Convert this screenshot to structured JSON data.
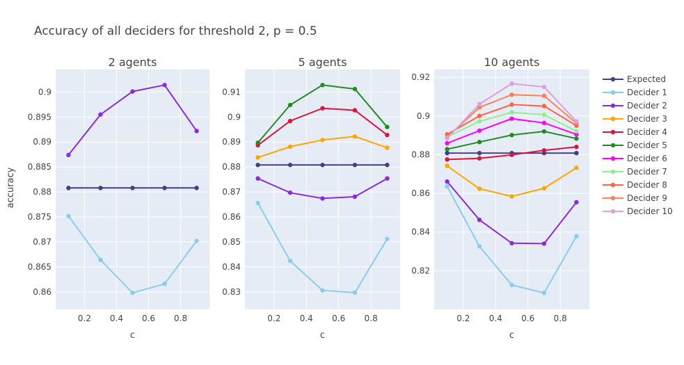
{
  "title": "Accuracy of all deciders for threshold 2, p = 0.5",
  "y_axis_label": "accuracy",
  "chart_data": {
    "type": "line",
    "title": "Accuracy of all deciders for threshold 2, p = 0.5",
    "ylabel": "accuracy",
    "legend": {
      "placement": "right",
      "entries": [
        {
          "name": "Expected",
          "color": "#3f3f8a"
        },
        {
          "name": "Decider 1",
          "color": "#87ceeb"
        },
        {
          "name": "Decider 2",
          "color": "#8a2be2"
        },
        {
          "name": "Decider 3",
          "color": "#ffa500"
        },
        {
          "name": "Decider 4",
          "color": "#dc143c"
        },
        {
          "name": "Decider 5",
          "color": "#228b22"
        },
        {
          "name": "Decider 6",
          "color": "#ff00ff"
        },
        {
          "name": "Decider 7",
          "color": "#90ee90"
        },
        {
          "name": "Decider 8",
          "color": "#ff6347"
        },
        {
          "name": "Decider 9",
          "color": "#ff7f50"
        },
        {
          "name": "Decider 10",
          "color": "#dda0dd"
        }
      ]
    },
    "subplots": [
      {
        "title": "2 agents",
        "xlabel": "c",
        "x": [
          0.1,
          0.3,
          0.5,
          0.7,
          0.9
        ],
        "xlim": [
          0.02,
          0.98
        ],
        "ylim": [
          0.8565,
          0.9045
        ],
        "xticks": [
          "0.2",
          "0.4",
          "0.6",
          "0.8"
        ],
        "yticks": [
          "0.86",
          "0.865",
          "0.87",
          "0.875",
          "0.88",
          "0.885",
          "0.89",
          "0.895",
          "0.9"
        ],
        "series": [
          {
            "name": "Expected",
            "values": [
              0.8808,
              0.8808,
              0.8808,
              0.8808,
              0.8808
            ]
          },
          {
            "name": "Decider 1",
            "values": [
              0.8752,
              0.8664,
              0.8598,
              0.8616,
              0.8702
            ]
          },
          {
            "name": "Decider 2",
            "values": [
              0.8874,
              0.8955,
              0.9001,
              0.9014,
              0.8922
            ]
          }
        ]
      },
      {
        "title": "5 agents",
        "xlabel": "c",
        "x": [
          0.1,
          0.3,
          0.5,
          0.7,
          0.9
        ],
        "xlim": [
          0.02,
          0.98
        ],
        "ylim": [
          0.823,
          0.919
        ],
        "xticks": [
          "0.2",
          "0.4",
          "0.6",
          "0.8"
        ],
        "yticks": [
          "0.83",
          "0.84",
          "0.85",
          "0.86",
          "0.87",
          "0.88",
          "0.89",
          "0.9",
          "0.91"
        ],
        "series": [
          {
            "name": "Expected",
            "values": [
              0.8808,
              0.8808,
              0.8808,
              0.8808,
              0.8808
            ]
          },
          {
            "name": "Decider 1",
            "values": [
              0.8656,
              0.8424,
              0.8306,
              0.8297,
              0.8512
            ]
          },
          {
            "name": "Decider 2",
            "values": [
              0.8754,
              0.8697,
              0.8674,
              0.8681,
              0.8754
            ]
          },
          {
            "name": "Decider 3",
            "values": [
              0.8838,
              0.8881,
              0.8908,
              0.8922,
              0.8877
            ]
          },
          {
            "name": "Decider 4",
            "values": [
              0.8887,
              0.8984,
              0.9035,
              0.9027,
              0.8928
            ]
          },
          {
            "name": "Decider 5",
            "values": [
              0.8897,
              0.9048,
              0.9128,
              0.9112,
              0.896
            ]
          }
        ]
      },
      {
        "title": "10 agents",
        "xlabel": "c",
        "x": [
          0.1,
          0.3,
          0.5,
          0.7,
          0.9
        ],
        "xlim": [
          0.02,
          0.98
        ],
        "ylim": [
          0.8,
          0.924
        ],
        "xticks": [
          "0.2",
          "0.4",
          "0.6",
          "0.8"
        ],
        "yticks": [
          "0.82",
          "0.84",
          "0.86",
          "0.88",
          "0.9",
          "0.92"
        ],
        "series": [
          {
            "name": "Expected",
            "values": [
              0.8808,
              0.8808,
              0.8808,
              0.8808,
              0.8808
            ]
          },
          {
            "name": "Decider 1",
            "values": [
              0.8636,
              0.8326,
              0.8126,
              0.8085,
              0.8378
            ]
          },
          {
            "name": "Decider 2",
            "values": [
              0.8661,
              0.8463,
              0.8342,
              0.834,
              0.8554
            ]
          },
          {
            "name": "Decider 3",
            "values": [
              0.8742,
              0.8624,
              0.8584,
              0.8626,
              0.8732
            ]
          },
          {
            "name": "Decider 4",
            "values": [
              0.8775,
              0.8781,
              0.8799,
              0.8822,
              0.884
            ]
          },
          {
            "name": "Decider 5",
            "values": [
              0.8828,
              0.8865,
              0.8901,
              0.892,
              0.8883
            ]
          },
          {
            "name": "Decider 6",
            "values": [
              0.8859,
              0.8924,
              0.8986,
              0.8964,
              0.8905
            ]
          },
          {
            "name": "Decider 7",
            "values": [
              0.8892,
              0.8972,
              0.9019,
              0.9006,
              0.8921
            ]
          },
          {
            "name": "Decider 8",
            "values": [
              0.8905,
              0.9,
              0.9059,
              0.9051,
              0.895
            ]
          },
          {
            "name": "Decider 9",
            "values": [
              0.889,
              0.9044,
              0.911,
              0.9104,
              0.8962
            ]
          },
          {
            "name": "Decider 10",
            "values": [
              0.8885,
              0.9061,
              0.9167,
              0.915,
              0.8972
            ]
          }
        ]
      }
    ]
  }
}
